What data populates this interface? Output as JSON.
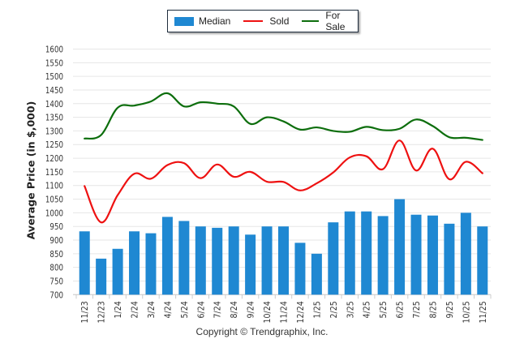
{
  "chart_data": {
    "type": "bar",
    "title": "",
    "xlabel": "",
    "ylabel": "Average Price (in $,000)",
    "ylim": [
      700,
      1600
    ],
    "yticks": [
      700,
      750,
      800,
      850,
      900,
      950,
      1000,
      1050,
      1100,
      1150,
      1200,
      1250,
      1300,
      1350,
      1400,
      1450,
      1500,
      1550,
      1600
    ],
    "grid": true,
    "legend_position": "top-center",
    "categories": [
      "11/23",
      "12/23",
      "1/24",
      "2/24",
      "3/24",
      "4/24",
      "5/24",
      "6/24",
      "7/24",
      "8/24",
      "9/24",
      "10/24",
      "11/24",
      "12/24",
      "1/25",
      "2/25",
      "3/25",
      "4/25",
      "5/25",
      "6/25",
      "7/25",
      "8/25",
      "9/25",
      "10/25",
      "11/25"
    ],
    "series": [
      {
        "name": "Median",
        "type": "bar",
        "color": "#1f88d2",
        "values": [
          932,
          832,
          868,
          932,
          925,
          985,
          970,
          950,
          945,
          950,
          920,
          950,
          950,
          890,
          850,
          965,
          1005,
          1005,
          988,
          1050,
          993,
          990,
          960,
          1000,
          950
        ]
      },
      {
        "name": "Sold",
        "type": "line",
        "color": "#ee1111",
        "values": [
          1098,
          965,
          1065,
          1143,
          1125,
          1175,
          1182,
          1127,
          1177,
          1132,
          1150,
          1114,
          1113,
          1082,
          1108,
          1148,
          1203,
          1207,
          1160,
          1265,
          1155,
          1235,
          1123,
          1187,
          1145
        ]
      },
      {
        "name": "For Sale",
        "type": "line",
        "color": "#0d6e0d",
        "values": [
          1272,
          1285,
          1385,
          1393,
          1408,
          1438,
          1390,
          1405,
          1400,
          1390,
          1326,
          1350,
          1335,
          1305,
          1313,
          1300,
          1297,
          1315,
          1303,
          1308,
          1342,
          1318,
          1277,
          1275,
          1267
        ]
      }
    ]
  },
  "legend": {
    "items": [
      {
        "label": "Median",
        "color": "#1f88d2"
      },
      {
        "label": "Sold",
        "color": "#ee1111"
      },
      {
        "label": "For Sale",
        "color": "#0d6e0d"
      }
    ]
  },
  "footer": "Copyright © Trendgraphix, Inc."
}
